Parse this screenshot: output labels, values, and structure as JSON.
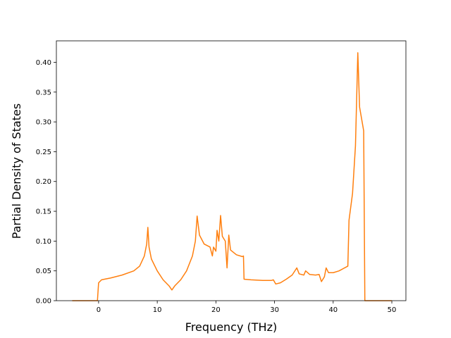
{
  "chart_data": {
    "type": "line",
    "xlabel": "Frequency (THz)",
    "ylabel": "Partial Density of States",
    "x": [
      -4.5,
      -0.2,
      0,
      0.5,
      1,
      2,
      4,
      6,
      7,
      7.8,
      8.2,
      8.4,
      8.6,
      9,
      10,
      11,
      12,
      12.5,
      13,
      14,
      15,
      16,
      16.5,
      16.8,
      17.2,
      18,
      19,
      19.4,
      19.6,
      20,
      20.2,
      20.5,
      20.8,
      21.1,
      21.6,
      21.9,
      22.2,
      22.5,
      23.5,
      24.5,
      24.7,
      24.8,
      26,
      28,
      29.5,
      29.8,
      30.2,
      31,
      32,
      33,
      33.8,
      34.2,
      35,
      35.3,
      36,
      37,
      37.6,
      38,
      38.5,
      38.8,
      39.2,
      40,
      41,
      42.5,
      42.7,
      43.3,
      43.8,
      44.2,
      44.5,
      45.2,
      45.4,
      50
    ],
    "series": [
      {
        "color": "#ff7f0e",
        "values": [
          0,
          0,
          0.03,
          0.035,
          0.036,
          0.038,
          0.043,
          0.05,
          0.058,
          0.075,
          0.095,
          0.123,
          0.09,
          0.07,
          0.05,
          0.035,
          0.025,
          0.018,
          0.025,
          0.035,
          0.05,
          0.075,
          0.1,
          0.142,
          0.11,
          0.095,
          0.09,
          0.075,
          0.09,
          0.083,
          0.118,
          0.1,
          0.143,
          0.108,
          0.1,
          0.055,
          0.11,
          0.085,
          0.077,
          0.074,
          0.075,
          0.036,
          0.035,
          0.034,
          0.034,
          0.035,
          0.028,
          0.03,
          0.036,
          0.043,
          0.055,
          0.045,
          0.043,
          0.05,
          0.044,
          0.043,
          0.044,
          0.032,
          0.04,
          0.055,
          0.047,
          0.047,
          0.05,
          0.058,
          0.135,
          0.18,
          0.26,
          0.416,
          0.325,
          0.285,
          0,
          0
        ]
      }
    ],
    "xlim": [
      -7.2,
      52.4
    ],
    "ylim": [
      0,
      0.436
    ],
    "xticks": [
      0,
      10,
      20,
      30,
      40,
      50
    ],
    "yticks": [
      {
        "value": 0,
        "label": "0.00"
      },
      0.05,
      {
        "value": 0.1,
        "label": "0.10"
      },
      0.15,
      {
        "value": 0.2,
        "label": "0.20"
      },
      0.25,
      {
        "value": 0.3,
        "label": "0.30"
      },
      0.35,
      {
        "value": 0.4,
        "label": "0.40"
      }
    ],
    "grid": false
  }
}
